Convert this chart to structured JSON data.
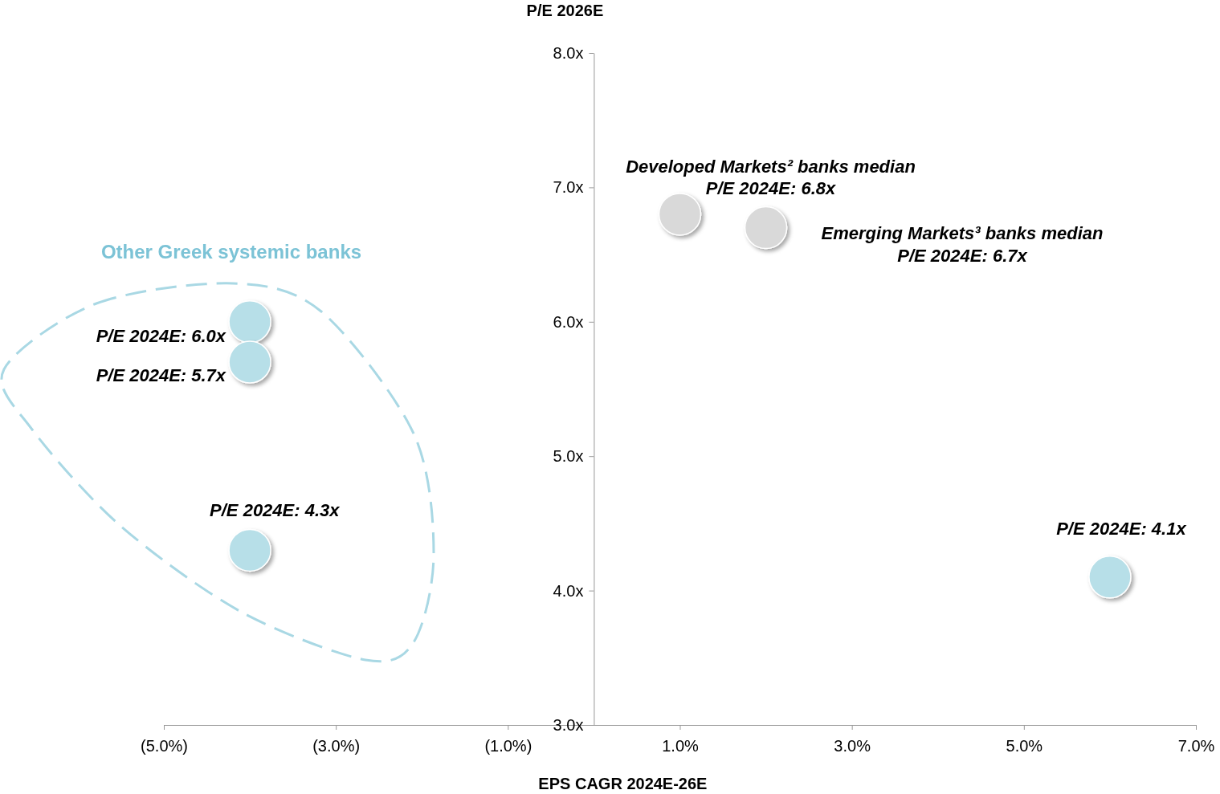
{
  "chart_data": {
    "type": "scatter",
    "xlabel": "EPS CAGR 2024E-26E",
    "ylabel": "P/E 2026E",
    "x": [
      -4.0,
      -4.0,
      -4.0,
      1.0,
      2.0,
      6.0
    ],
    "values": [
      6.0,
      5.7,
      4.3,
      6.8,
      6.7,
      4.1
    ],
    "colors": [
      "#b7dfe8",
      "#b7dfe8",
      "#b7dfe8",
      "#d9d9d9",
      "#d9d9d9",
      "#b7dfe8"
    ],
    "marker": "circle",
    "grid": false,
    "xlim": [
      -5,
      7
    ],
    "ylim": [
      3,
      8
    ],
    "xticks": [
      {
        "value": -5,
        "label": "(5.0%)"
      },
      {
        "value": -3,
        "label": "(3.0%)"
      },
      {
        "value": -1,
        "label": "(1.0%)"
      },
      {
        "value": 1,
        "label": "1.0%"
      },
      {
        "value": 3,
        "label": "3.0%"
      },
      {
        "value": 5,
        "label": "5.0%"
      },
      {
        "value": 7,
        "label": "7.0%"
      }
    ],
    "yticks": [
      {
        "value": 3,
        "label": "3.0x"
      },
      {
        "value": 4,
        "label": "4.0x"
      },
      {
        "value": 5,
        "label": "5.0x"
      },
      {
        "value": 6,
        "label": "6.0x"
      },
      {
        "value": 7,
        "label": "7.0x"
      },
      {
        "value": 8,
        "label": "8.0x"
      }
    ],
    "annotations": [
      "Other Greek systemic banks",
      {
        "text": "P/E 2024E: 6.0x",
        "x": -4.0,
        "y": 6.0
      },
      {
        "text": "P/E 2024E: 5.7x",
        "x": -4.0,
        "y": 5.7
      },
      {
        "text": "P/E 2024E: 4.3x",
        "x": -4.0,
        "y": 4.3
      },
      {
        "text": "Developed Markets² banks median\nP/E 2024E: 6.8x",
        "x": 1.0,
        "y": 6.8
      },
      "Emerging Markets³ banks median\nP/E 2024E: 6.7x",
      {
        "text": "P/E 2024E: 4.1x",
        "x": 6.0,
        "y": 4.1
      }
    ]
  }
}
